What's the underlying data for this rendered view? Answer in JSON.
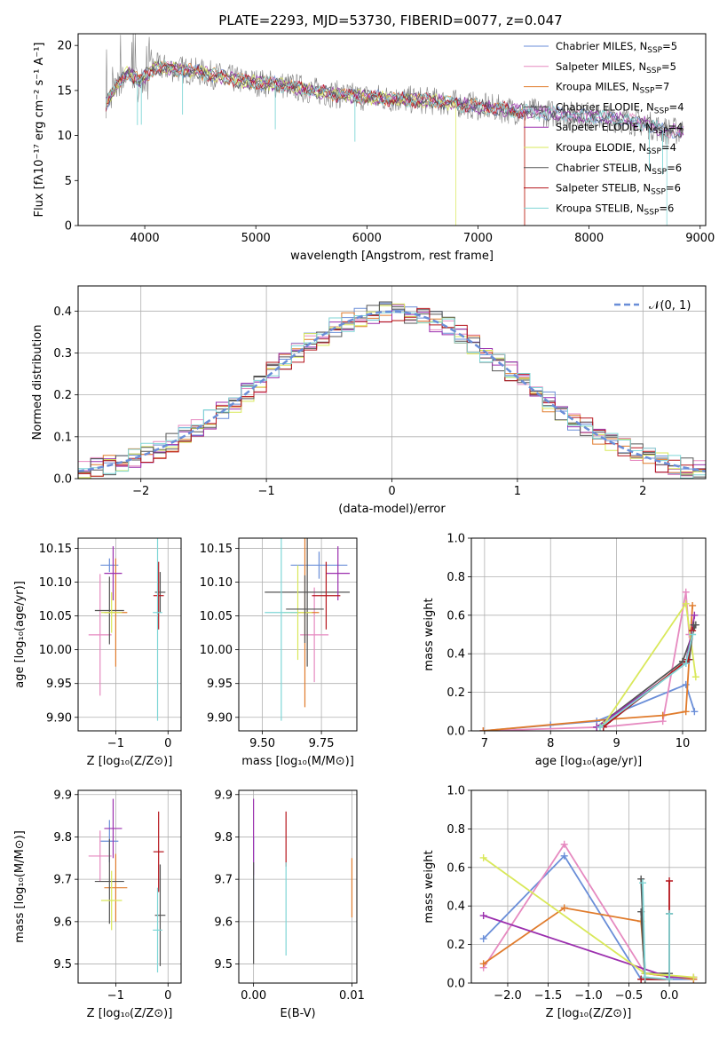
{
  "figure": {
    "title": "PLATE=2293, MJD=53730, FIBERID=0077, z=0.047"
  },
  "colors": {
    "Chabrier MILES": "#6a8ed8",
    "Salpeter MILES": "#e68ac0",
    "Kroupa MILES": "#e07b2c",
    "Chabrier ELODIE": "#555555",
    "Salpeter ELODIE": "#9b2fae",
    "Kroupa ELODIE": "#d9e85a",
    "Chabrier STELIB": "#555555",
    "Salpeter STELIB": "#b5141b",
    "Kroupa STELIB": "#7fd6d6",
    "normal": "#6a8ed8"
  },
  "chart_data": [
    {
      "id": "spectrum",
      "type": "line",
      "xlabel": "wavelength [Angstrom, rest frame]",
      "ylabel": "Flux [fλ10⁻¹⁷ erg cm⁻² s⁻¹ A⁻¹]",
      "xlim": [
        3400,
        9050
      ],
      "ylim": [
        0,
        21.3
      ],
      "xticks": [
        "4000",
        "5000",
        "6000",
        "7000",
        "8000",
        "9000"
      ],
      "yticks": [
        "0",
        "5",
        "10",
        "15",
        "20"
      ],
      "legend_position": "top-right",
      "legend": [
        {
          "name": "Chabrier MILES, N",
          "sub": "SSP",
          "val": "=5"
        },
        {
          "name": "Salpeter MILES, N",
          "sub": "SSP",
          "val": "=5"
        },
        {
          "name": "Kroupa MILES, N",
          "sub": "SSP",
          "val": "=7"
        },
        {
          "name": "Chabrier ELODIE, N",
          "sub": "SSP",
          "val": "=4"
        },
        {
          "name": "Salpeter ELODIE, N",
          "sub": "SSP",
          "val": "=4"
        },
        {
          "name": "Kroupa ELODIE, N",
          "sub": "SSP",
          "val": "=4"
        },
        {
          "name": "Chabrier STELIB, N",
          "sub": "SSP",
          "val": "=6"
        },
        {
          "name": "Salpeter STELIB, N",
          "sub": "SSP",
          "val": "=6"
        },
        {
          "name": "Kroupa STELIB, N",
          "sub": "SSP",
          "val": "=6"
        }
      ],
      "model_continuum": [
        [
          3650,
          13.5
        ],
        [
          3750,
          15.5
        ],
        [
          3850,
          17
        ],
        [
          3950,
          16
        ],
        [
          4100,
          17.6
        ],
        [
          4300,
          17.4
        ],
        [
          4500,
          17
        ],
        [
          4700,
          16.5
        ],
        [
          4900,
          16
        ],
        [
          5100,
          15.8
        ],
        [
          5300,
          15.5
        ],
        [
          5500,
          15
        ],
        [
          5700,
          14.6
        ],
        [
          5900,
          14.3
        ],
        [
          6100,
          14.2
        ],
        [
          6300,
          14
        ],
        [
          6500,
          13.9
        ],
        [
          6700,
          13.7
        ],
        [
          6900,
          13.4
        ],
        [
          7100,
          13.1
        ],
        [
          7300,
          12.8
        ],
        [
          7500,
          12.6
        ],
        [
          7700,
          12.4
        ],
        [
          7900,
          12.2
        ],
        [
          8100,
          12
        ],
        [
          8300,
          11.8
        ],
        [
          8500,
          11.3
        ],
        [
          8700,
          10.5
        ]
      ],
      "observed_range": [
        3650,
        8850
      ],
      "model_cutoffs": {
        "Kroupa MILES": 7420,
        "Salpeter STELIB": 7420,
        "Kroupa ELODIE": 6800,
        "Kroupa STELIB": 8700
      }
    },
    {
      "id": "residual-histogram",
      "type": "line",
      "xlabel": "(data-model)/error",
      "ylabel": "Normed distribution",
      "xlim": [
        -2.5,
        2.5
      ],
      "ylim": [
        0,
        0.46
      ],
      "xticks": [
        "−2",
        "−1",
        "0",
        "1",
        "2"
      ],
      "yticks": [
        "0.0",
        "0.1",
        "0.2",
        "0.3",
        "0.4"
      ],
      "legend": "𝒩(0, 1)",
      "legend_position": "top-right",
      "bin_width": 0.1
    },
    {
      "id": "age-vs-metallicity",
      "type": "scatter",
      "xlabel": "Z [log₁₀(Z/Z⊙)]",
      "ylabel": "age  [log₁₀(age/yr)]",
      "xlim": [
        -1.72,
        0.25
      ],
      "ylim": [
        9.88,
        10.165
      ],
      "xticks": [
        "−1",
        "0"
      ],
      "yticks": [
        "9.90",
        "9.95",
        "10.00",
        "10.05",
        "10.10",
        "10.15"
      ],
      "points": [
        {
          "model": "Chabrier MILES",
          "x": -1.12,
          "y": 10.125,
          "xerr": 0.17,
          "yerr": 0.01
        },
        {
          "model": "Salpeter MILES",
          "x": -1.3,
          "y": 10.022,
          "xerr": 0.22,
          "yerr": 0.09
        },
        {
          "model": "Kroupa MILES",
          "x": -1.0,
          "y": 10.055,
          "xerr": 0.22,
          "yerr": 0.08
        },
        {
          "model": "Chabrier ELODIE",
          "x": -1.12,
          "y": 10.058,
          "xerr": 0.28,
          "yerr": 0.05
        },
        {
          "model": "Salpeter ELODIE",
          "x": -1.05,
          "y": 10.113,
          "xerr": 0.17,
          "yerr": 0.04
        },
        {
          "model": "Kroupa ELODIE",
          "x": -1.08,
          "y": 10.055,
          "xerr": 0.2,
          "yerr": 0.03
        },
        {
          "model": "Chabrier STELIB",
          "x": -0.15,
          "y": 10.085,
          "xerr": 0.1,
          "yerr": 0.03
        },
        {
          "model": "Salpeter STELIB",
          "x": -0.18,
          "y": 10.08,
          "xerr": 0.1,
          "yerr": 0.05
        },
        {
          "model": "Kroupa STELIB",
          "x": -0.2,
          "y": 10.055,
          "xerr": 0.09,
          "yerr": 0.16
        }
      ]
    },
    {
      "id": "age-vs-mass",
      "type": "scatter",
      "xlabel": "mass [log₁₀(M/M⊙)]",
      "ylabel": "",
      "xlim": [
        9.4,
        9.9
      ],
      "ylim": [
        9.88,
        10.165
      ],
      "xticks": [
        "9.50",
        "9.75"
      ],
      "yticks": [
        "9.90",
        "9.95",
        "10.00",
        "10.05",
        "10.10",
        "10.15"
      ],
      "points": [
        {
          "model": "Chabrier MILES",
          "x": 9.74,
          "y": 10.125,
          "xerr": 0.12,
          "yerr": 0.02
        },
        {
          "model": "Salpeter MILES",
          "x": 9.72,
          "y": 10.022,
          "xerr": 0.06,
          "yerr": 0.07
        },
        {
          "model": "Kroupa MILES",
          "x": 9.68,
          "y": 10.055,
          "xerr": 0.06,
          "yerr": 0.14
        },
        {
          "model": "Chabrier ELODIE",
          "x": 9.69,
          "y": 10.085,
          "xerr": 0.18,
          "yerr": 0.11
        },
        {
          "model": "Salpeter ELODIE",
          "x": 9.82,
          "y": 10.113,
          "xerr": 0.05,
          "yerr": 0.04
        },
        {
          "model": "Kroupa ELODIE",
          "x": 9.65,
          "y": 10.055,
          "xerr": 0.06,
          "yerr": 0.07
        },
        {
          "model": "Chabrier STELIB",
          "x": 9.68,
          "y": 10.06,
          "xerr": 0.08,
          "yerr": 0.05
        },
        {
          "model": "Salpeter STELIB",
          "x": 9.77,
          "y": 10.08,
          "xerr": 0.06,
          "yerr": 0.05
        },
        {
          "model": "Kroupa STELIB",
          "x": 9.58,
          "y": 10.055,
          "xerr": 0.07,
          "yerr": 0.16
        }
      ]
    },
    {
      "id": "mass-weight-vs-age",
      "type": "line",
      "xlabel": "age  [log₁₀(age/yr)]",
      "ylabel": "mass weight",
      "xlim": [
        6.8,
        10.35
      ],
      "ylim": [
        0,
        1
      ],
      "xticks": [
        "7",
        "8",
        "9",
        "10"
      ],
      "yticks": [
        "0.0",
        "0.2",
        "0.4",
        "0.6",
        "0.8",
        "1.0"
      ],
      "series": [
        {
          "model": "Chabrier MILES",
          "x": [
            6.98,
            8.0,
            8.7,
            10.05,
            10.18
          ],
          "y": [
            0.0,
            0.03,
            0.05,
            0.24,
            0.1
          ]
        },
        {
          "model": "Salpeter MILES",
          "x": [
            6.98,
            8.8,
            9.7,
            10.05,
            10.1
          ],
          "y": [
            0.0,
            0.02,
            0.05,
            0.72,
            0.5
          ]
        },
        {
          "model": "Kroupa MILES",
          "x": [
            6.98,
            8.9,
            9.7,
            10.05,
            10.15
          ],
          "y": [
            0.0,
            0.06,
            0.08,
            0.1,
            0.65
          ]
        },
        {
          "model": "Chabrier ELODIE",
          "x": [
            8.7,
            10.0,
            10.2
          ],
          "y": [
            0.02,
            0.36,
            0.55
          ]
        },
        {
          "model": "Salpeter ELODIE",
          "x": [
            8.7,
            10.05,
            10.18
          ],
          "y": [
            0.02,
            0.35,
            0.6
          ]
        },
        {
          "model": "Kroupa ELODIE",
          "x": [
            8.8,
            10.05,
            10.2
          ],
          "y": [
            0.03,
            0.66,
            0.28
          ]
        },
        {
          "model": "Chabrier STELIB",
          "x": [
            8.8,
            10.1,
            10.17
          ],
          "y": [
            0.02,
            0.37,
            0.55
          ]
        },
        {
          "model": "Salpeter STELIB",
          "x": [
            8.8,
            10.08,
            10.15
          ],
          "y": [
            0.02,
            0.37,
            0.52
          ]
        },
        {
          "model": "Kroupa STELIB",
          "x": [
            8.75,
            10.05,
            10.15
          ],
          "y": [
            0.02,
            0.35,
            0.5
          ]
        }
      ]
    },
    {
      "id": "mass-vs-metallicity",
      "type": "scatter",
      "xlabel": "Z [log₁₀(Z/Z⊙)]",
      "ylabel": "mass [log₁₀(M/M⊙)]",
      "xlim": [
        -1.72,
        0.25
      ],
      "ylim": [
        9.455,
        9.91
      ],
      "xticks": [
        "−1",
        "0"
      ],
      "yticks": [
        "9.5",
        "9.6",
        "9.7",
        "9.8",
        "9.9"
      ],
      "points": [
        {
          "model": "Chabrier MILES",
          "x": -1.12,
          "y": 9.79,
          "xerr": 0.17,
          "yerr": 0.05
        },
        {
          "model": "Salpeter MILES",
          "x": -1.3,
          "y": 9.755,
          "xerr": 0.22,
          "yerr": 0.06
        },
        {
          "model": "Kroupa MILES",
          "x": -1.0,
          "y": 9.68,
          "xerr": 0.22,
          "yerr": 0.08
        },
        {
          "model": "Chabrier ELODIE",
          "x": -1.12,
          "y": 9.695,
          "xerr": 0.28,
          "yerr": 0.1
        },
        {
          "model": "Salpeter ELODIE",
          "x": -1.05,
          "y": 9.82,
          "xerr": 0.17,
          "yerr": 0.07
        },
        {
          "model": "Kroupa ELODIE",
          "x": -1.08,
          "y": 9.65,
          "xerr": 0.2,
          "yerr": 0.07
        },
        {
          "model": "Chabrier STELIB",
          "x": -0.15,
          "y": 9.615,
          "xerr": 0.1,
          "yerr": 0.12
        },
        {
          "model": "Salpeter STELIB",
          "x": -0.18,
          "y": 9.765,
          "xerr": 0.1,
          "yerr": 0.095
        },
        {
          "model": "Kroupa STELIB",
          "x": -0.2,
          "y": 9.58,
          "xerr": 0.09,
          "yerr": 0.1
        }
      ]
    },
    {
      "id": "mass-vs-extinction",
      "type": "scatter",
      "xlabel": "E(B-V)",
      "ylabel": "",
      "xlim": [
        -0.0015,
        0.0105
      ],
      "ylim": [
        9.455,
        9.91
      ],
      "xticks": [
        "0.00",
        "0.01"
      ],
      "yticks": [
        "9.5",
        "9.6",
        "9.7",
        "9.8",
        "9.9"
      ],
      "points": [
        {
          "model": "Chabrier MILES",
          "x": 0.0,
          "y": 9.7,
          "xerr": 0,
          "yerr": 0.1
        },
        {
          "model": "Salpeter ELODIE",
          "x": 0.0,
          "y": 9.8,
          "xerr": 0,
          "yerr": 0.09
        },
        {
          "model": "Chabrier STELIB",
          "x": 0.0,
          "y": 9.62,
          "xerr": 0,
          "yerr": 0.12
        },
        {
          "model": "Salpeter STELIB",
          "x": 0.0033,
          "y": 9.795,
          "xerr": 0,
          "yerr": 0.065
        },
        {
          "model": "Kroupa STELIB",
          "x": 0.0033,
          "y": 9.63,
          "xerr": 0,
          "yerr": 0.11
        },
        {
          "model": "Kroupa MILES",
          "x": 0.01,
          "y": 9.68,
          "xerr": 0,
          "yerr": 0.07
        }
      ]
    },
    {
      "id": "mass-weight-vs-metallicity",
      "type": "line",
      "xlabel": "Z [log₁₀(Z/Z⊙)]",
      "ylabel": "mass weight",
      "xlim": [
        -2.45,
        0.45
      ],
      "ylim": [
        0,
        1
      ],
      "xticks": [
        "−2.0",
        "−1.5",
        "−1.0",
        "−0.5",
        "0.0"
      ],
      "yticks": [
        "0.0",
        "0.2",
        "0.4",
        "0.6",
        "0.8",
        "1.0"
      ],
      "series": [
        {
          "model": "Chabrier MILES",
          "x": [
            -2.3,
            -1.3,
            -0.35,
            0.3
          ],
          "y": [
            0.23,
            0.66,
            0.02,
            0.02
          ]
        },
        {
          "model": "Salpeter MILES",
          "x": [
            -2.3,
            -1.3,
            -0.3,
            0.3
          ],
          "y": [
            0.08,
            0.72,
            0.05,
            0.02
          ]
        },
        {
          "model": "Kroupa MILES",
          "x": [
            -2.3,
            -1.3,
            -0.35,
            -0.3,
            0.3
          ],
          "y": [
            0.1,
            0.39,
            0.32,
            0.05,
            0.02
          ]
        },
        {
          "model": "Chabrier ELODIE",
          "x": [
            -0.35,
            -0.3,
            0.0,
            0.0
          ],
          "y": [
            0.54,
            0.05,
            0.05,
            0.36
          ]
        },
        {
          "model": "Salpeter ELODIE",
          "x": [
            -2.3,
            0.0,
            0.3
          ],
          "y": [
            0.35,
            0.03,
            0.03
          ]
        },
        {
          "model": "Kroupa ELODIE",
          "x": [
            -2.3,
            -0.3,
            0.0,
            0.3
          ],
          "y": [
            0.65,
            0.05,
            0.04,
            0.03
          ]
        },
        {
          "model": "Chabrier STELIB",
          "x": [
            -0.35,
            -0.3,
            0.0,
            0.0
          ],
          "y": [
            0.37,
            0.02,
            0.02,
            0.36
          ]
        },
        {
          "model": "Salpeter STELIB",
          "x": [
            -0.35,
            0.0,
            0.0
          ],
          "y": [
            0.02,
            0.02,
            0.53
          ]
        },
        {
          "model": "Kroupa STELIB",
          "x": [
            -0.33,
            -0.3,
            0.0,
            0.0
          ],
          "y": [
            0.52,
            0.03,
            0.02,
            0.36
          ]
        }
      ]
    }
  ]
}
